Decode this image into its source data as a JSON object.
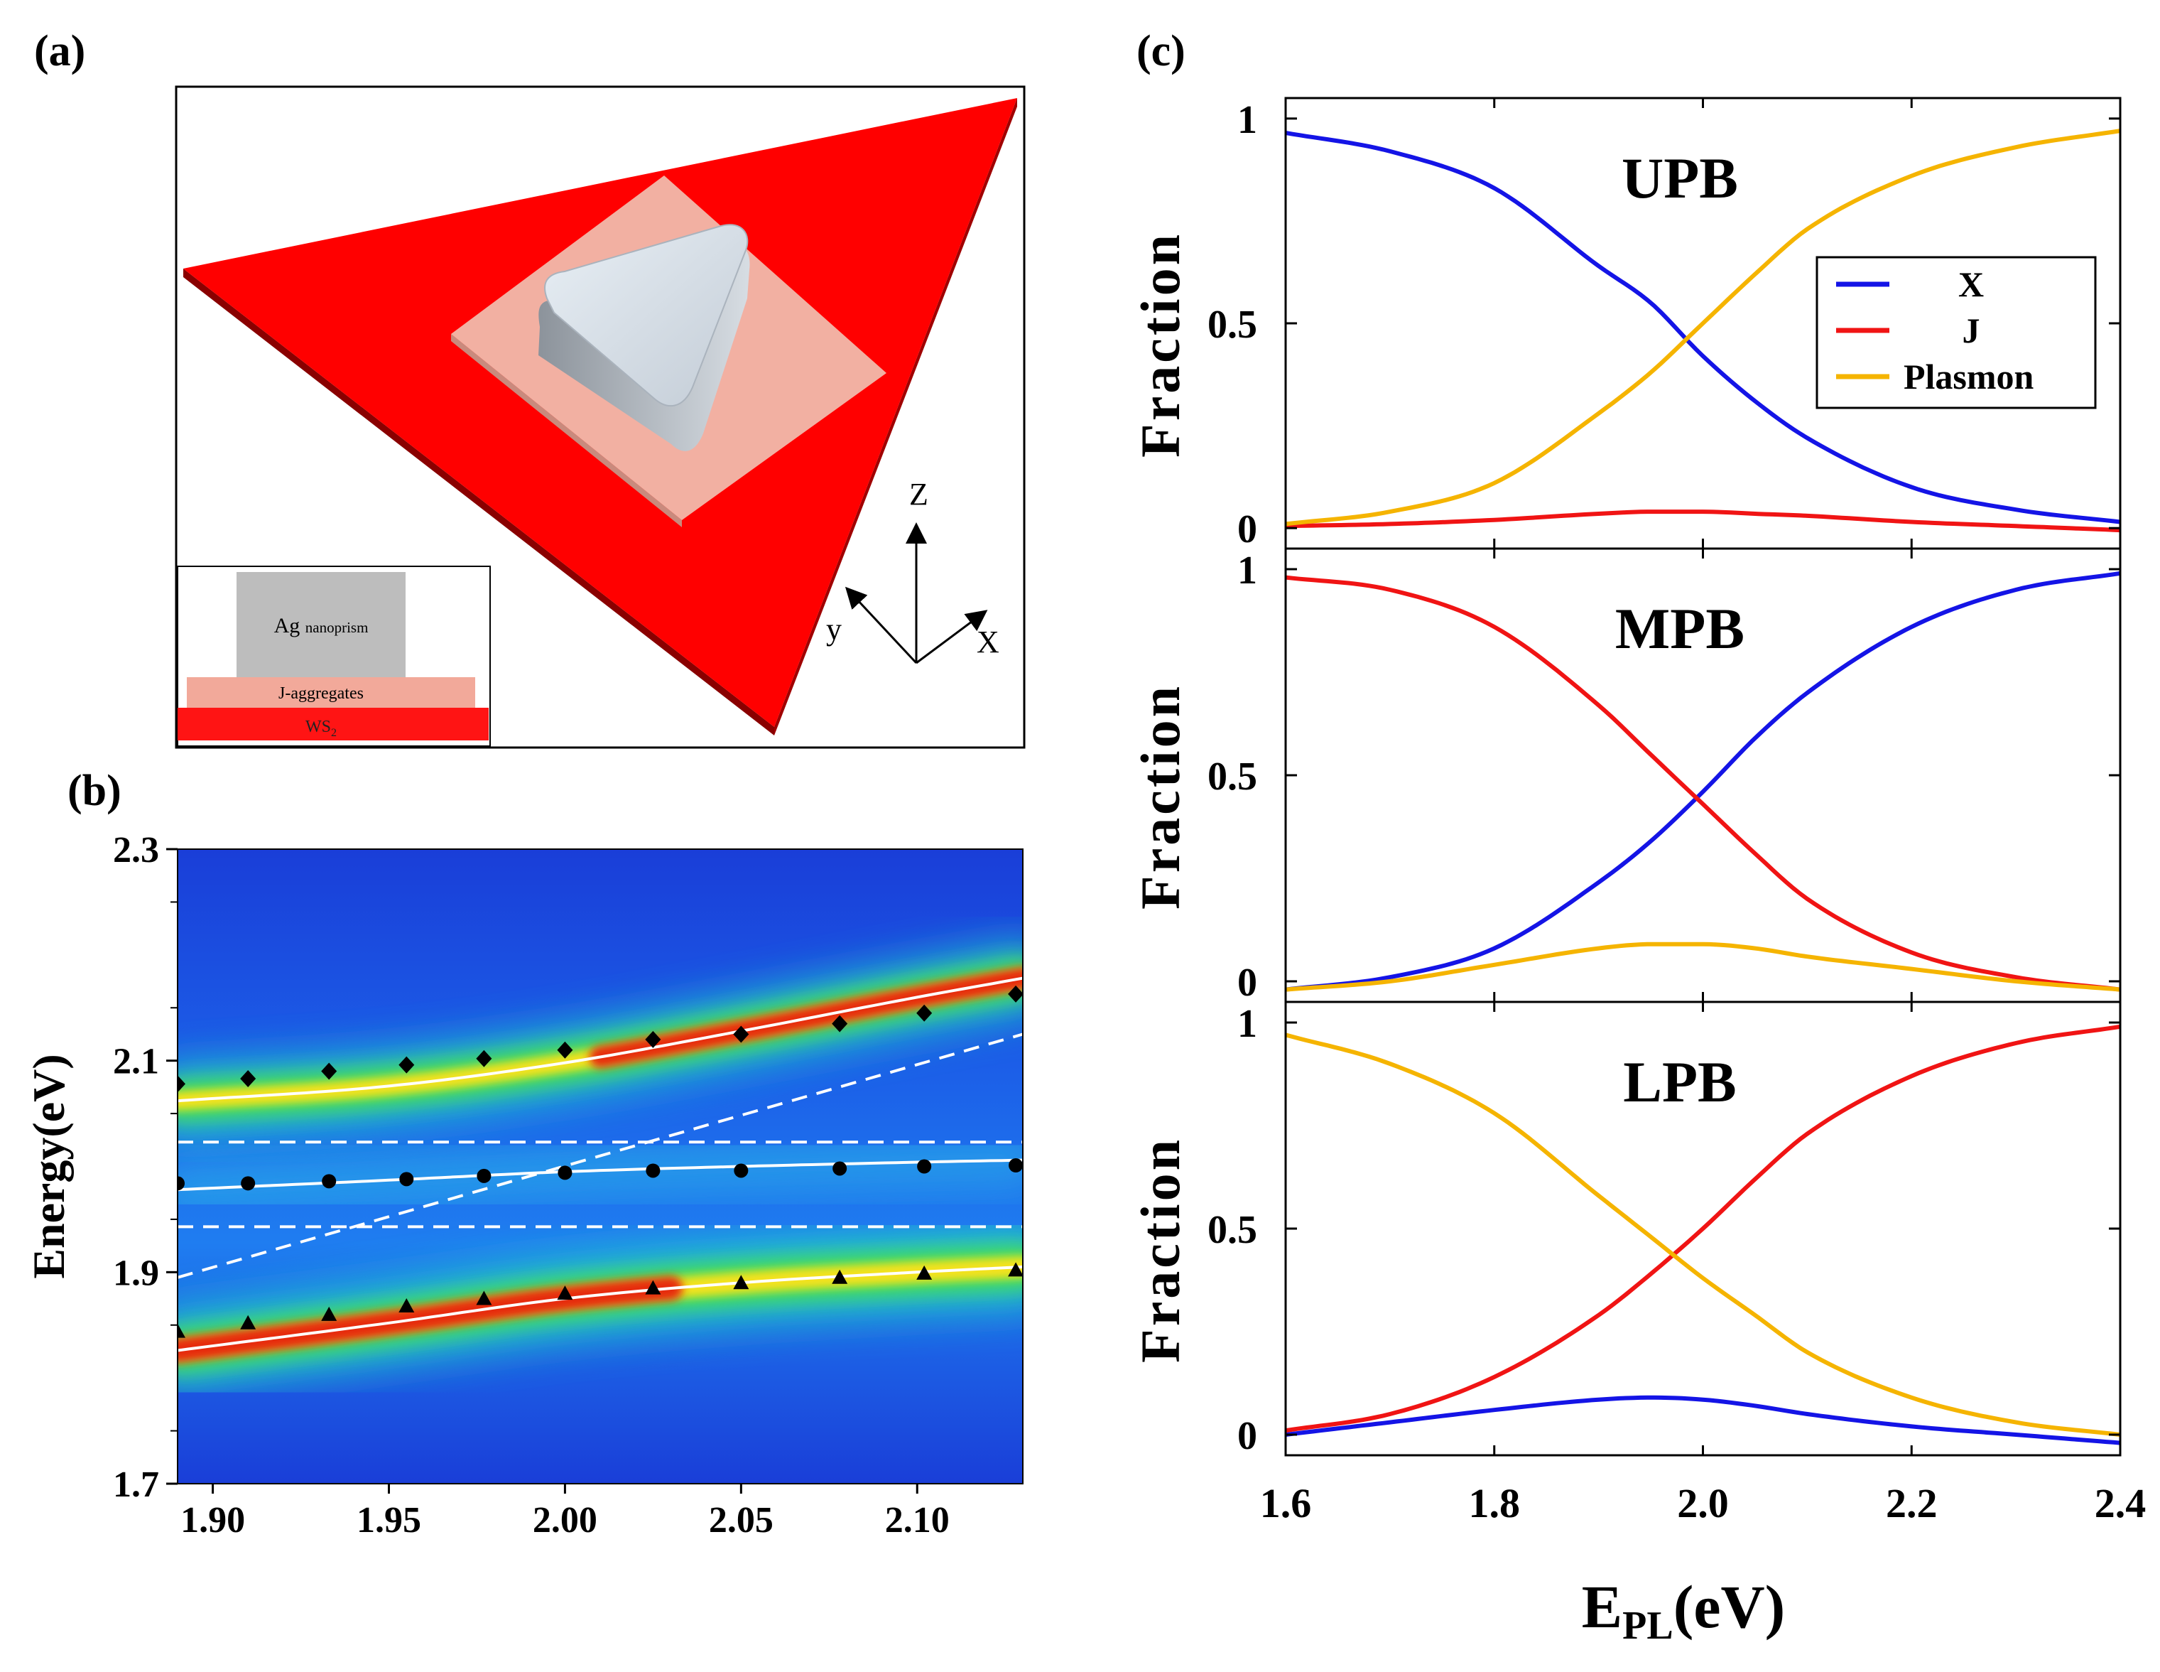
{
  "panel_labels": {
    "a": "(a)",
    "b": "(b)",
    "c": "(c)"
  },
  "schematic": {
    "inset_layers": [
      "Ag",
      "nanoprism",
      "J-aggregates",
      "WS",
      "2"
    ],
    "axes_labels": {
      "z": "Z",
      "y": "y",
      "x": "X"
    }
  },
  "colors": {
    "x_exciton": "#1414e6",
    "j_aggregate": "#f01414",
    "plasmon": "#f5b400",
    "substrate_red": "#ff0000",
    "j_layer_pink": "#f2a99a",
    "marker": "#000000"
  },
  "chart_data": [
    {
      "id": "b",
      "type": "heatmap",
      "title": "",
      "xlabel": "",
      "ylabel": "Energy(eV)",
      "xlim": [
        1.89,
        2.13
      ],
      "ylim": [
        1.7,
        2.3
      ],
      "xticks": [
        1.9,
        1.95,
        2.0,
        2.05,
        2.1
      ],
      "xtick_labels": [
        "1.90",
        "1.95",
        "2.00",
        "2.05",
        "2.10"
      ],
      "yticks": [
        1.7,
        1.9,
        2.1,
        2.3
      ],
      "ytick_labels": [
        "1.7",
        "1.9",
        "2.1",
        "2.3"
      ],
      "heatmap": "PL intensity map with three polariton branches (high intensity red near upper and lower branches)",
      "dashed_lines": {
        "horizontal": [
          2.023,
          1.943
        ],
        "diagonal": {
          "x": [
            1.89,
            2.13
          ],
          "y": [
            1.895,
            2.125
          ]
        }
      },
      "fit_curves": {
        "upper": {
          "x": [
            1.89,
            1.95,
            2.0,
            2.05,
            2.1,
            2.13
          ],
          "y": [
            2.062,
            2.076,
            2.098,
            2.128,
            2.16,
            2.178
          ]
        },
        "middle": {
          "x": [
            1.89,
            1.95,
            2.0,
            2.05,
            2.1,
            2.13
          ],
          "y": [
            1.978,
            1.987,
            1.995,
            2.0,
            2.004,
            2.006
          ]
        },
        "lower": {
          "x": [
            1.89,
            1.95,
            2.0,
            2.05,
            2.1,
            2.13
          ],
          "y": [
            1.826,
            1.852,
            1.875,
            1.89,
            1.9,
            1.905
          ]
        }
      },
      "series": [
        {
          "name": "upper branch (diamonds)",
          "marker": "diamond",
          "x": [
            1.89,
            1.91,
            1.933,
            1.955,
            1.977,
            2.0,
            2.025,
            2.05,
            2.078,
            2.102,
            2.128
          ],
          "y": [
            2.078,
            2.083,
            2.09,
            2.096,
            2.102,
            2.11,
            2.12,
            2.125,
            2.135,
            2.145,
            2.163
          ]
        },
        {
          "name": "middle branch (circles)",
          "marker": "circle",
          "x": [
            1.89,
            1.91,
            1.933,
            1.955,
            1.977,
            2.0,
            2.025,
            2.05,
            2.078,
            2.102,
            2.128
          ],
          "y": [
            1.984,
            1.984,
            1.986,
            1.988,
            1.991,
            1.994,
            1.996,
            1.996,
            1.998,
            2.0,
            2.001
          ]
        },
        {
          "name": "lower branch (triangles)",
          "marker": "triangle",
          "x": [
            1.89,
            1.91,
            1.933,
            1.955,
            1.977,
            2.0,
            2.025,
            2.05,
            2.078,
            2.102,
            2.128
          ],
          "y": [
            1.844,
            1.852,
            1.86,
            1.868,
            1.875,
            1.88,
            1.885,
            1.89,
            1.895,
            1.899,
            1.902
          ]
        }
      ]
    },
    {
      "id": "c",
      "type": "line",
      "xlabel_main": "E",
      "xlabel_sub": "PL",
      "xlabel_unit": "(eV)",
      "ylabel": "Fraction",
      "xlim": [
        1.6,
        2.4
      ],
      "ylim": [
        -0.05,
        1.05
      ],
      "xticks": [
        1.6,
        1.8,
        2.0,
        2.2,
        2.4
      ],
      "xtick_labels": [
        "1.6",
        "1.8",
        "2.0",
        "2.2",
        "2.4"
      ],
      "yticks": [
        0,
        0.5,
        1
      ],
      "ytick_labels": [
        "0",
        "0.5",
        "1"
      ],
      "legend": {
        "position": "top-right of UPB panel",
        "entries": [
          "X",
          "J",
          "Plasmon"
        ]
      },
      "subplots": [
        {
          "title": "UPB",
          "x": [
            1.6,
            1.7,
            1.8,
            1.9,
            1.95,
            2.0,
            2.05,
            2.1,
            2.2,
            2.3,
            2.4
          ],
          "series": [
            {
              "name": "X",
              "values": [
                0.965,
                0.92,
                0.83,
                0.64,
                0.55,
                0.42,
                0.31,
                0.22,
                0.1,
                0.045,
                0.015
              ]
            },
            {
              "name": "J",
              "values": [
                0.005,
                0.01,
                0.02,
                0.035,
                0.04,
                0.04,
                0.035,
                0.03,
                0.015,
                0.005,
                -0.005
              ]
            },
            {
              "name": "Plasmon",
              "values": [
                0.01,
                0.04,
                0.11,
                0.28,
                0.38,
                0.5,
                0.62,
                0.73,
                0.86,
                0.93,
                0.97
              ]
            }
          ]
        },
        {
          "title": "MPB",
          "x": [
            1.6,
            1.7,
            1.8,
            1.9,
            1.95,
            2.0,
            2.05,
            2.1,
            2.2,
            2.3,
            2.4
          ],
          "series": [
            {
              "name": "X",
              "values": [
                -0.02,
                0.01,
                0.08,
                0.24,
                0.34,
                0.46,
                0.59,
                0.7,
                0.86,
                0.95,
                0.99
              ]
            },
            {
              "name": "J",
              "values": [
                0.98,
                0.95,
                0.86,
                0.67,
                0.55,
                0.43,
                0.31,
                0.2,
                0.07,
                0.01,
                -0.02
              ]
            },
            {
              "name": "Plasmon",
              "values": [
                -0.02,
                0.0,
                0.04,
                0.08,
                0.09,
                0.09,
                0.08,
                0.06,
                0.03,
                0.0,
                -0.02
              ]
            }
          ]
        },
        {
          "title": "LPB",
          "x": [
            1.6,
            1.7,
            1.8,
            1.9,
            1.95,
            2.0,
            2.05,
            2.1,
            2.2,
            2.3,
            2.4
          ],
          "series": [
            {
              "name": "X",
              "values": [
                0.0,
                0.03,
                0.06,
                0.085,
                0.09,
                0.085,
                0.07,
                0.05,
                0.02,
                0.0,
                -0.02
              ]
            },
            {
              "name": "J",
              "values": [
                0.01,
                0.05,
                0.14,
                0.29,
                0.39,
                0.5,
                0.62,
                0.73,
                0.87,
                0.95,
                0.99
              ]
            },
            {
              "name": "Plasmon",
              "values": [
                0.97,
                0.9,
                0.78,
                0.58,
                0.48,
                0.38,
                0.29,
                0.2,
                0.09,
                0.03,
                0.0
              ]
            }
          ]
        }
      ]
    }
  ]
}
